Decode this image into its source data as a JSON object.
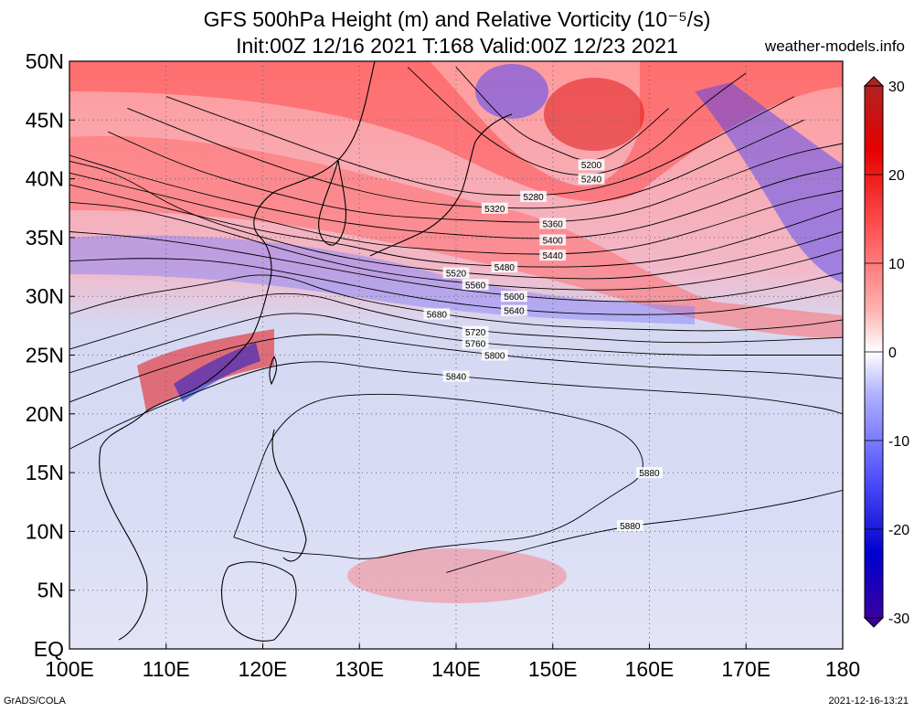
{
  "title": {
    "line1": "GFS 500hPa Height (m) and Relative Vorticity (10⁻⁵/s)",
    "line2": "Init:00Z 12/16 2021 T:168 Valid:00Z 12/23 2021",
    "site": "weather-models.info"
  },
  "footer": {
    "left": "GrADS/COLA",
    "right": "2021-12-16-13:21"
  },
  "map": {
    "lon_range": [
      100,
      180
    ],
    "lat_range": [
      0,
      50
    ],
    "lon_ticks": [
      "100E",
      "110E",
      "120E",
      "130E",
      "140E",
      "150E",
      "160E",
      "170E",
      "180"
    ],
    "lat_ticks": [
      "EQ",
      "5N",
      "10N",
      "15N",
      "20N",
      "25N",
      "30N",
      "35N",
      "40N",
      "45N",
      "50N"
    ],
    "gridlines": "dotted"
  },
  "colorbar": {
    "labels": [
      "30",
      "20",
      "10",
      "0",
      "-10",
      "-20",
      "-30"
    ],
    "colors": [
      "#b22222",
      "#e60000",
      "#ff5a5a",
      "#ffb0b0",
      "#ffffff",
      "#b0b0ff",
      "#5a5aff",
      "#0000d0",
      "#3a00a0"
    ]
  },
  "contours": [
    {
      "label": "5200",
      "pts": [
        [
          140,
          49.5
        ],
        [
          146,
          44
        ],
        [
          150,
          42.5
        ],
        [
          154,
          41.2
        ],
        [
          158,
          43
        ],
        [
          162,
          46
        ]
      ]
    },
    {
      "label": "5240",
      "pts": [
        [
          135,
          49.5
        ],
        [
          142,
          44
        ],
        [
          148,
          41
        ],
        [
          154,
          40
        ],
        [
          160,
          42
        ],
        [
          165,
          46
        ],
        [
          170,
          49
        ]
      ]
    },
    {
      "label": "5280",
      "pts": [
        [
          110,
          47
        ],
        [
          120,
          44
        ],
        [
          130,
          41
        ],
        [
          140,
          38.8
        ],
        [
          148,
          38.5
        ],
        [
          154,
          39
        ],
        [
          160,
          40.5
        ],
        [
          168,
          44
        ],
        [
          175,
          47
        ]
      ]
    },
    {
      "label": "5320",
      "pts": [
        [
          106,
          46
        ],
        [
          115,
          43
        ],
        [
          125,
          40
        ],
        [
          135,
          38
        ],
        [
          144,
          37.5
        ],
        [
          152,
          37.5
        ],
        [
          160,
          39
        ],
        [
          168,
          42
        ],
        [
          176,
          45
        ]
      ]
    },
    {
      "label": "5360",
      "pts": [
        [
          104,
          44
        ],
        [
          112,
          41
        ],
        [
          120,
          39
        ],
        [
          130,
          37
        ],
        [
          140,
          36.5
        ],
        [
          150,
          36.2
        ],
        [
          158,
          37
        ],
        [
          166,
          39.5
        ],
        [
          174,
          42
        ],
        [
          180,
          43
        ]
      ]
    },
    {
      "label": "5400",
      "pts": [
        [
          100,
          42
        ],
        [
          110,
          39.5
        ],
        [
          120,
          37.5
        ],
        [
          130,
          36
        ],
        [
          140,
          35.2
        ],
        [
          150,
          34.8
        ],
        [
          158,
          35.5
        ],
        [
          166,
          37.5
        ],
        [
          174,
          40
        ],
        [
          180,
          41
        ]
      ]
    },
    {
      "label": "5440",
      "pts": [
        [
          100,
          40.5
        ],
        [
          110,
          38.5
        ],
        [
          120,
          36.5
        ],
        [
          130,
          34.5
        ],
        [
          140,
          33.8
        ],
        [
          150,
          33.5
        ],
        [
          158,
          34
        ],
        [
          166,
          35.8
        ],
        [
          174,
          38
        ],
        [
          180,
          39
        ]
      ]
    },
    {
      "label": "5480",
      "pts": [
        [
          100,
          39.5
        ],
        [
          110,
          37.5
        ],
        [
          120,
          35.5
        ],
        [
          128,
          34.5
        ],
        [
          136,
          33
        ],
        [
          145,
          32.5
        ],
        [
          155,
          32.5
        ],
        [
          163,
          33.2
        ],
        [
          171,
          35
        ],
        [
          180,
          37.5
        ]
      ]
    },
    {
      "label": "5520",
      "pts": [
        [
          100,
          41.5
        ],
        [
          105,
          40.5
        ],
        [
          112,
          37
        ],
        [
          122,
          34.5
        ],
        [
          130,
          33
        ],
        [
          140,
          32
        ],
        [
          150,
          31.5
        ],
        [
          158,
          31.5
        ],
        [
          166,
          32.5
        ],
        [
          174,
          34
        ],
        [
          180,
          35.5
        ]
      ]
    },
    {
      "label": "5560",
      "pts": [
        [
          100,
          38
        ],
        [
          106,
          37.6
        ],
        [
          114,
          36
        ],
        [
          124,
          33.5
        ],
        [
          132,
          32
        ],
        [
          142,
          31
        ],
        [
          152,
          30.5
        ],
        [
          160,
          30.6
        ],
        [
          168,
          31.5
        ],
        [
          176,
          33
        ],
        [
          180,
          34
        ]
      ]
    },
    {
      "label": "5600",
      "pts": [
        [
          100,
          35.5
        ],
        [
          108,
          35
        ],
        [
          116,
          34
        ],
        [
          126,
          32.5
        ],
        [
          136,
          31
        ],
        [
          146,
          30
        ],
        [
          156,
          29.5
        ],
        [
          164,
          29.6
        ],
        [
          172,
          30.5
        ],
        [
          180,
          32
        ]
      ]
    },
    {
      "label": "5640",
      "pts": [
        [
          100,
          33
        ],
        [
          108,
          33.3
        ],
        [
          116,
          33
        ],
        [
          126,
          31.5
        ],
        [
          136,
          29.8
        ],
        [
          146,
          28.8
        ],
        [
          156,
          28.4
        ],
        [
          166,
          28.5
        ],
        [
          174,
          29.5
        ],
        [
          180,
          30.5
        ]
      ]
    },
    {
      "label": "5680",
      "pts": [
        [
          100,
          28.5
        ],
        [
          106,
          30
        ],
        [
          114,
          31
        ],
        [
          121,
          32.2
        ],
        [
          128,
          30
        ],
        [
          138,
          28.5
        ],
        [
          148,
          27.5
        ],
        [
          158,
          27.2
        ],
        [
          168,
          27
        ],
        [
          176,
          27.5
        ],
        [
          180,
          28
        ]
      ]
    },
    {
      "label": "5720",
      "pts": [
        [
          100,
          25.5
        ],
        [
          106,
          27
        ],
        [
          114,
          29
        ],
        [
          123,
          30.7
        ],
        [
          132,
          28.5
        ],
        [
          142,
          27
        ],
        [
          152,
          26.5
        ],
        [
          162,
          26
        ],
        [
          172,
          26.2
        ],
        [
          180,
          26.5
        ]
      ]
    },
    {
      "label": "5760",
      "pts": [
        [
          100,
          23.5
        ],
        [
          106,
          25
        ],
        [
          114,
          27
        ],
        [
          123,
          29
        ],
        [
          132,
          27.3
        ],
        [
          142,
          26
        ],
        [
          152,
          25.5
        ],
        [
          162,
          25
        ],
        [
          172,
          25
        ],
        [
          180,
          25
        ]
      ]
    },
    {
      "label": "5800",
      "pts": [
        [
          100,
          21
        ],
        [
          108,
          23.5
        ],
        [
          118,
          26
        ],
        [
          126,
          27
        ],
        [
          134,
          26
        ],
        [
          144,
          25
        ],
        [
          154,
          24.3
        ],
        [
          164,
          23.8
        ],
        [
          174,
          23.5
        ],
        [
          180,
          23
        ]
      ]
    },
    {
      "label": "5840",
      "pts": [
        [
          100,
          17
        ],
        [
          106,
          19.5
        ],
        [
          112,
          21.5
        ],
        [
          120,
          24
        ],
        [
          126,
          24.6
        ],
        [
          132,
          23.8
        ],
        [
          140,
          23.2
        ],
        [
          150,
          22.5
        ],
        [
          160,
          22
        ],
        [
          170,
          21.5
        ],
        [
          178,
          20.5
        ],
        [
          180,
          20
        ]
      ]
    },
    {
      "label": "5880",
      "pts": [
        [
          117,
          9.5
        ],
        [
          119,
          14
        ],
        [
          121,
          18.5
        ],
        [
          125,
          21.3
        ],
        [
          132,
          21.8
        ],
        [
          140,
          21.3
        ],
        [
          150,
          20.2
        ],
        [
          158,
          18.5
        ],
        [
          160,
          15
        ],
        [
          156,
          13
        ],
        [
          150,
          9.7
        ],
        [
          142,
          9
        ],
        [
          136,
          8.5
        ],
        [
          131,
          7.5
        ],
        [
          127,
          8
        ],
        [
          122,
          8.2
        ],
        [
          117,
          9.5
        ]
      ]
    },
    {
      "label": "5880",
      "pts": [
        [
          139,
          6.5
        ],
        [
          145,
          8
        ],
        [
          152,
          9.5
        ],
        [
          158,
          10.5
        ],
        [
          166,
          11.2
        ],
        [
          175,
          12.5
        ],
        [
          180,
          13.5
        ]
      ]
    }
  ]
}
